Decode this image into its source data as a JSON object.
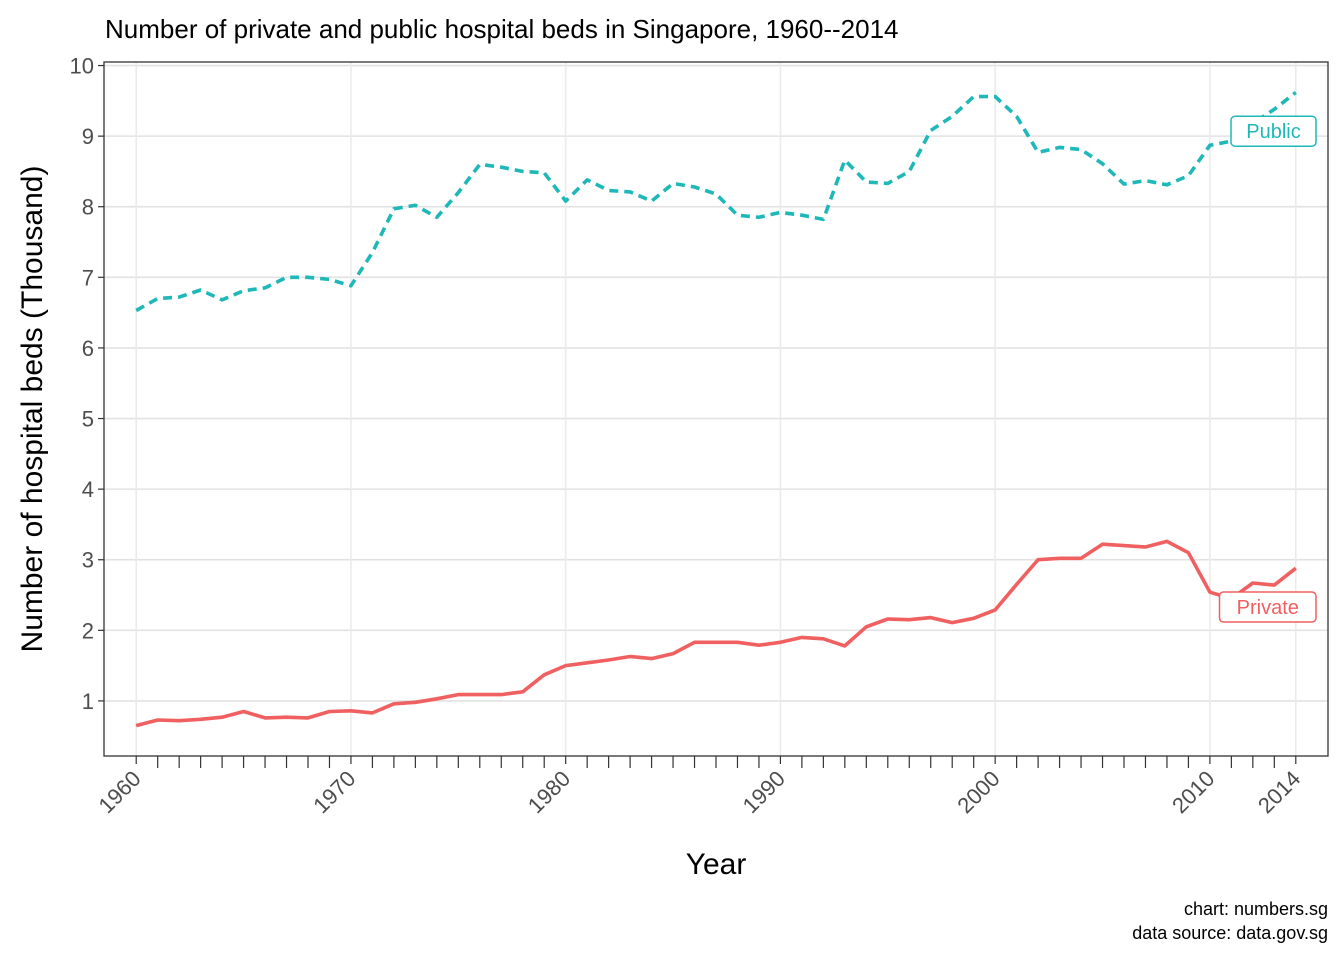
{
  "chart_data": {
    "type": "line",
    "title": "Number of private and public hospital beds in Singapore, 1960--2014",
    "xlabel": "Year",
    "ylabel": "Number of hospital beds (Thousand)",
    "xlim": [
      1958.5,
      2015.5
    ],
    "ylim": [
      0.22,
      10.05
    ],
    "x_ticks": [
      1960,
      1970,
      1980,
      1990,
      2000,
      2010,
      2014
    ],
    "x_tick_labels": [
      "1960",
      "1970",
      "1980",
      "1990",
      "2000",
      "2010",
      "2014"
    ],
    "y_ticks": [
      1,
      2,
      3,
      4,
      5,
      6,
      7,
      8,
      9,
      10
    ],
    "y_tick_labels": [
      "1",
      "2",
      "3",
      "4",
      "5",
      "6",
      "7",
      "8",
      "9",
      "10"
    ],
    "grid": true,
    "x": [
      1960,
      1961,
      1962,
      1963,
      1964,
      1965,
      1966,
      1967,
      1968,
      1969,
      1970,
      1971,
      1972,
      1973,
      1974,
      1975,
      1976,
      1977,
      1978,
      1979,
      1980,
      1981,
      1982,
      1983,
      1984,
      1985,
      1986,
      1987,
      1988,
      1989,
      1990,
      1991,
      1992,
      1993,
      1994,
      1995,
      1996,
      1997,
      1998,
      1999,
      2000,
      2001,
      2002,
      2003,
      2004,
      2005,
      2006,
      2007,
      2008,
      2009,
      2010,
      2011,
      2012,
      2013,
      2014
    ],
    "series": [
      {
        "name": "Public",
        "color": "#1fb8b8",
        "style": "dashed",
        "values": [
          6.53,
          6.7,
          6.72,
          6.82,
          6.68,
          6.81,
          6.85,
          7.0,
          7.0,
          6.97,
          6.88,
          7.35,
          7.97,
          8.02,
          7.85,
          8.2,
          8.6,
          8.56,
          8.5,
          8.48,
          8.08,
          8.38,
          8.23,
          8.21,
          8.08,
          8.33,
          8.28,
          8.18,
          7.88,
          7.85,
          7.92,
          7.88,
          7.82,
          8.66,
          8.35,
          8.33,
          8.5,
          9.08,
          9.28,
          9.56,
          9.56,
          9.28,
          8.77,
          8.84,
          8.81,
          8.61,
          8.32,
          8.37,
          8.31,
          8.44,
          8.87,
          8.93,
          9.18,
          9.38,
          9.62
        ]
      },
      {
        "name": "Private",
        "color": "#f06060",
        "style": "solid",
        "values": [
          0.65,
          0.73,
          0.72,
          0.74,
          0.77,
          0.85,
          0.76,
          0.77,
          0.76,
          0.85,
          0.86,
          0.83,
          0.96,
          0.98,
          1.03,
          1.09,
          1.09,
          1.09,
          1.13,
          1.37,
          1.5,
          1.54,
          1.58,
          1.63,
          1.6,
          1.67,
          1.83,
          1.83,
          1.83,
          1.79,
          1.83,
          1.9,
          1.88,
          1.78,
          2.05,
          2.16,
          2.15,
          2.18,
          2.11,
          2.17,
          2.29,
          2.65,
          3.0,
          3.02,
          3.02,
          3.22,
          3.2,
          3.18,
          3.26,
          3.1,
          2.54,
          2.45,
          2.67,
          2.64,
          2.88
        ]
      }
    ],
    "legend": "direct labels at right end of lines"
  },
  "caption": {
    "line1": "chart: numbers.sg",
    "line2": "data source: data.gov.sg"
  }
}
